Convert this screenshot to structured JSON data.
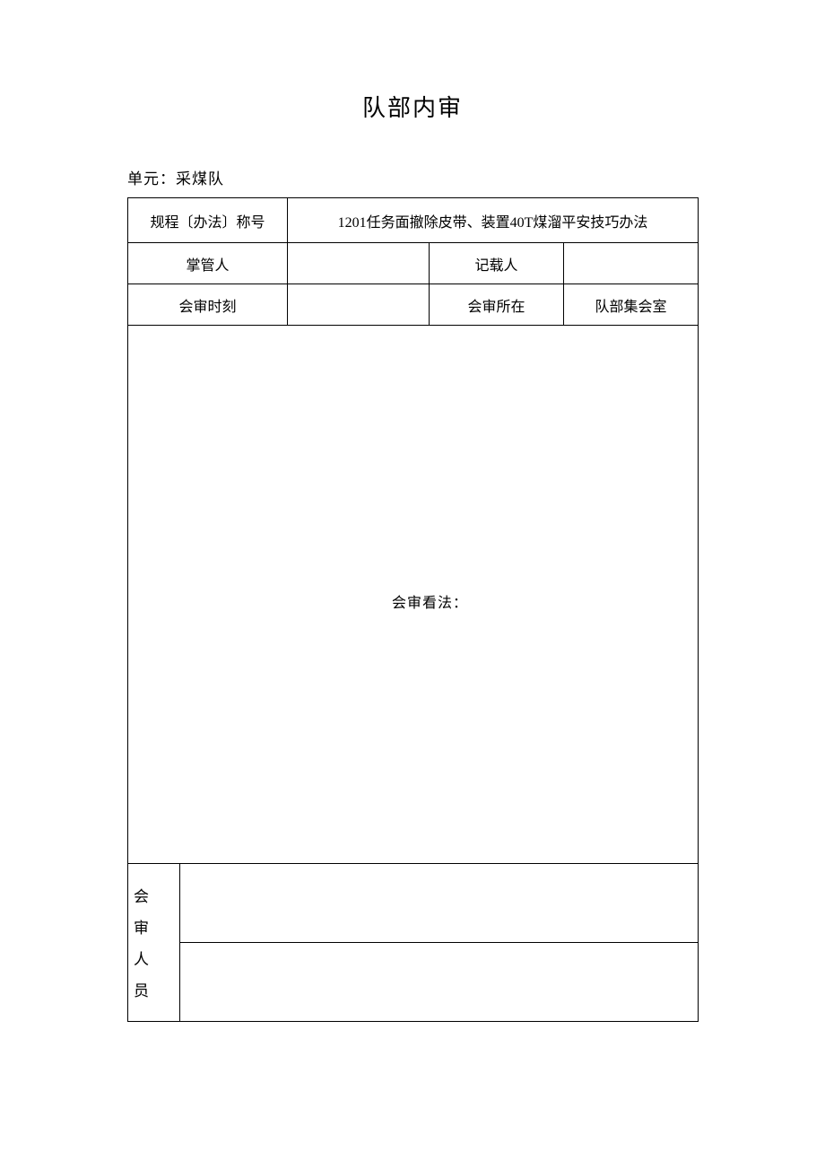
{
  "title": "队部内审",
  "unit_label": "单元：采煤队",
  "row1": {
    "label": "规程〔办法〕称号",
    "value": "1201任务面撤除皮带、装置40T煤溜平安技巧办法"
  },
  "row2": {
    "label_left": "掌管人",
    "value_left": "",
    "label_right": "记载人",
    "value_right": ""
  },
  "row3": {
    "label_left": "会审时刻",
    "value_left": "",
    "label_right": "会审所在",
    "value_right": "队部集会室"
  },
  "opinion_label": "会审看法：",
  "personnel_label": "会审人员",
  "personnel_rows": [
    "",
    ""
  ]
}
